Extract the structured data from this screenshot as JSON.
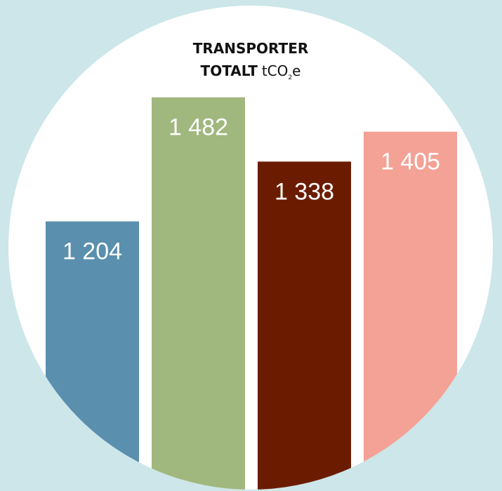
{
  "chart_data": {
    "type": "bar",
    "title": "TRANSPORTER",
    "title_line2": "TOTALT",
    "unit": {
      "main": "tCO",
      "sub": "2",
      "end": "e"
    },
    "categories": [
      null,
      null,
      null,
      null
    ],
    "values": [
      1204,
      1482,
      1338,
      1405
    ],
    "value_labels": [
      "1 204",
      "1 482",
      "1 338",
      "1 405"
    ],
    "colors": [
      "#5a8fae",
      "#a0b77e",
      "#6b1c00",
      "#f4a196"
    ],
    "ylim": [
      600,
      1700
    ]
  }
}
